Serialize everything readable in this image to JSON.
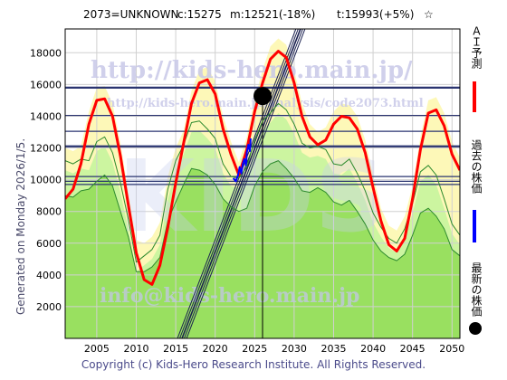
{
  "header": {
    "ticker": "2073=UNKNOWN",
    "current": "c:15275",
    "model": "m:12521(-18%)",
    "target": "t:15993(+5%)",
    "star": "☆"
  },
  "side_caption": "Generated on Monday 2026/1/5.",
  "copyright": "Copyright (c) Kids-Hero Research Institute. All Rights Reserved.",
  "watermarks": {
    "url": "http://kids-hero.main.jp/",
    "page": "http://kids-hero.main.jp/analysis/code2073.html",
    "mail": "info@kids-hero.main.jp",
    "big": "KIDS"
  },
  "legend": {
    "prediction": "ＡＩ予測",
    "past": "過去の株価",
    "latest": "最新の株価"
  },
  "colors": {
    "prediction": "#ff0000",
    "past": "#0000ff",
    "latest": "#000000",
    "band_green_light": "#ccf5a0",
    "band_green": "#99e060",
    "band_yellow": "#fdf8b8",
    "grid": "#d0d0d0",
    "hline": "#2a3470",
    "trend": "#1a2050"
  },
  "chart_data": {
    "type": "line",
    "xlim": [
      2001,
      2051
    ],
    "ylim": [
      0,
      19500
    ],
    "x_ticks": [
      2005,
      2010,
      2015,
      2020,
      2025,
      2030,
      2035,
      2040,
      2045,
      2050
    ],
    "y_ticks": [
      2000,
      4000,
      6000,
      8000,
      10000,
      12000,
      14000,
      16000,
      18000
    ],
    "grid": true,
    "latest_point": {
      "x": 2026,
      "y": 15275
    },
    "current_year_marker": 2026,
    "horizontal_levels": [
      15800,
      14050,
      13050,
      12100,
      10200,
      9900,
      9700
    ],
    "series": [
      {
        "name": "ＡＩ予測",
        "x": [
          2001,
          2002,
          2003,
          2004,
          2005,
          2006,
          2007,
          2008,
          2009,
          2010,
          2011,
          2012,
          2013,
          2014,
          2015,
          2016,
          2017,
          2018,
          2019,
          2020,
          2021,
          2022,
          2023,
          2024,
          2025,
          2026,
          2027,
          2028,
          2029,
          2030,
          2031,
          2032,
          2033,
          2034,
          2035,
          2036,
          2037,
          2038,
          2039,
          2040,
          2041,
          2042,
          2043,
          2044,
          2045,
          2046,
          2047,
          2048,
          2049,
          2050,
          2051
        ],
        "values": [
          8800,
          9400,
          11000,
          13500,
          15000,
          15100,
          14000,
          11500,
          8400,
          5400,
          3700,
          3400,
          4600,
          7000,
          9800,
          12300,
          14800,
          16100,
          16300,
          15400,
          13200,
          11600,
          10300,
          11900,
          14300,
          16100,
          17600,
          18100,
          17700,
          16100,
          14000,
          12700,
          12200,
          12500,
          13500,
          14000,
          13900,
          13200,
          11700,
          9500,
          7400,
          5900,
          5500,
          6300,
          8800,
          11900,
          14200,
          14400,
          13400,
          11600,
          10600
        ]
      },
      {
        "name": "過去の株価",
        "x": [
          2022.3,
          2022.6,
          2022.9,
          2023.1,
          2023.3,
          2023.5,
          2023.7,
          2023.9,
          2024.0,
          2024.2,
          2024.4,
          2024.5
        ],
        "values": [
          10100,
          9900,
          10300,
          10800,
          10400,
          11000,
          11300,
          10900,
          11700,
          12200,
          11800,
          12600
        ]
      },
      {
        "name": "",
        "x": [
          2001,
          2002,
          2003,
          2004,
          2005,
          2006,
          2007,
          2008,
          2009,
          2010,
          2011,
          2012,
          2013,
          2014,
          2015,
          2016,
          2017,
          2018,
          2019,
          2020,
          2021,
          2022,
          2023,
          2024,
          2025,
          2026,
          2027,
          2028,
          2029,
          2030,
          2031,
          2032,
          2033,
          2034,
          2035,
          2036,
          2037,
          2038,
          2039,
          2040,
          2041,
          2042,
          2043,
          2044,
          2045,
          2046,
          2047,
          2048,
          2049,
          2050,
          2051
        ],
        "values": [
          11200,
          11000,
          11300,
          11200,
          12400,
          12700,
          11700,
          9800,
          7500,
          4800,
          5200,
          5600,
          6500,
          9400,
          11200,
          12200,
          13600,
          13700,
          13200,
          12600,
          11000,
          10200,
          10100,
          10800,
          12500,
          13700,
          14200,
          14800,
          14400,
          13500,
          12300,
          12000,
          12100,
          11900,
          11000,
          10900,
          11300,
          10400,
          9300,
          7900,
          7000,
          6300,
          6000,
          6900,
          8500,
          10500,
          10900,
          10300,
          8800,
          7200,
          6500
        ]
      },
      {
        "name": "",
        "x": [
          2001,
          2002,
          2003,
          2004,
          2005,
          2006,
          2007,
          2008,
          2009,
          2010,
          2011,
          2012,
          2013,
          2014,
          2015,
          2016,
          2017,
          2018,
          2019,
          2020,
          2021,
          2022,
          2023,
          2024,
          2025,
          2026,
          2027,
          2028,
          2029,
          2030,
          2031,
          2032,
          2033,
          2034,
          2035,
          2036,
          2037,
          2038,
          2039,
          2040,
          2041,
          2042,
          2043,
          2044,
          2045,
          2046,
          2047,
          2048,
          2049,
          2050,
          2051
        ],
        "values": [
          9000,
          8900,
          9300,
          9400,
          9900,
          10300,
          9600,
          8000,
          6400,
          4200,
          4200,
          4500,
          5100,
          7400,
          8600,
          9700,
          10700,
          10600,
          10300,
          9700,
          8800,
          8300,
          8000,
          8200,
          9600,
          10500,
          11000,
          11200,
          10700,
          10100,
          9300,
          9200,
          9500,
          9200,
          8600,
          8400,
          8700,
          8000,
          7200,
          6200,
          5500,
          5100,
          4900,
          5300,
          6500,
          7900,
          8200,
          7700,
          6900,
          5600,
          5200
        ]
      }
    ]
  }
}
